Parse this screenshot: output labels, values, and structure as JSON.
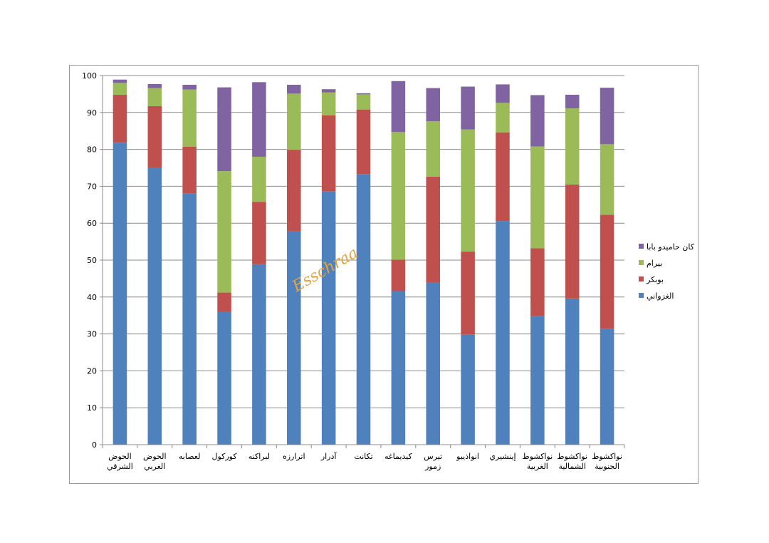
{
  "chart_data": {
    "type": "bar",
    "stacked": true,
    "title": "",
    "xlabel": "",
    "ylabel": "",
    "ylim": [
      0,
      100
    ],
    "yticks": [
      0,
      10,
      20,
      30,
      40,
      50,
      60,
      70,
      80,
      90,
      100
    ],
    "grid": true,
    "legend_position": "right",
    "watermark": "Esschraa",
    "categories": [
      [
        "الحوض",
        "الشرقي"
      ],
      [
        "الحوض",
        "الغربي"
      ],
      [
        "لعصابه"
      ],
      [
        "كوركول"
      ],
      [
        "لبراكنه"
      ],
      [
        "اترارزه"
      ],
      [
        "آدرار"
      ],
      [
        "تكانت"
      ],
      [
        "كيديماغه"
      ],
      [
        "تيرس",
        "زمور"
      ],
      [
        "انواذيبو"
      ],
      [
        "إينشيري"
      ],
      [
        "نواكشوط",
        "الغربية"
      ],
      [
        "نواكشوط",
        "الشمالية"
      ],
      [
        "نواكشوط",
        "الجنوبية"
      ]
    ],
    "series": [
      {
        "name": "الغزواني",
        "color": "#4f81bd",
        "values": [
          81.8,
          75.1,
          68.0,
          36.0,
          48.9,
          57.8,
          68.6,
          73.3,
          41.6,
          43.9,
          29.8,
          60.6,
          34.8,
          39.6,
          31.4
        ]
      },
      {
        "name": "بوبكر",
        "color": "#c0504d",
        "values": [
          13.0,
          16.6,
          12.7,
          5.2,
          16.9,
          22.1,
          20.6,
          17.5,
          8.5,
          28.7,
          22.5,
          24.0,
          18.4,
          30.9,
          30.9
        ]
      },
      {
        "name": "بيرام",
        "color": "#9bbb59",
        "values": [
          3.2,
          4.9,
          15.5,
          32.9,
          12.2,
          15.2,
          6.2,
          4.1,
          34.6,
          15.0,
          33.1,
          8.0,
          27.6,
          20.6,
          19.1
        ]
      },
      {
        "name": "كان حاميدو بابا",
        "color": "#8064a2",
        "values": [
          0.9,
          1.1,
          1.3,
          22.7,
          20.2,
          2.4,
          0.9,
          0.3,
          13.8,
          9.0,
          11.6,
          5.0,
          13.9,
          3.7,
          15.3
        ]
      }
    ]
  }
}
